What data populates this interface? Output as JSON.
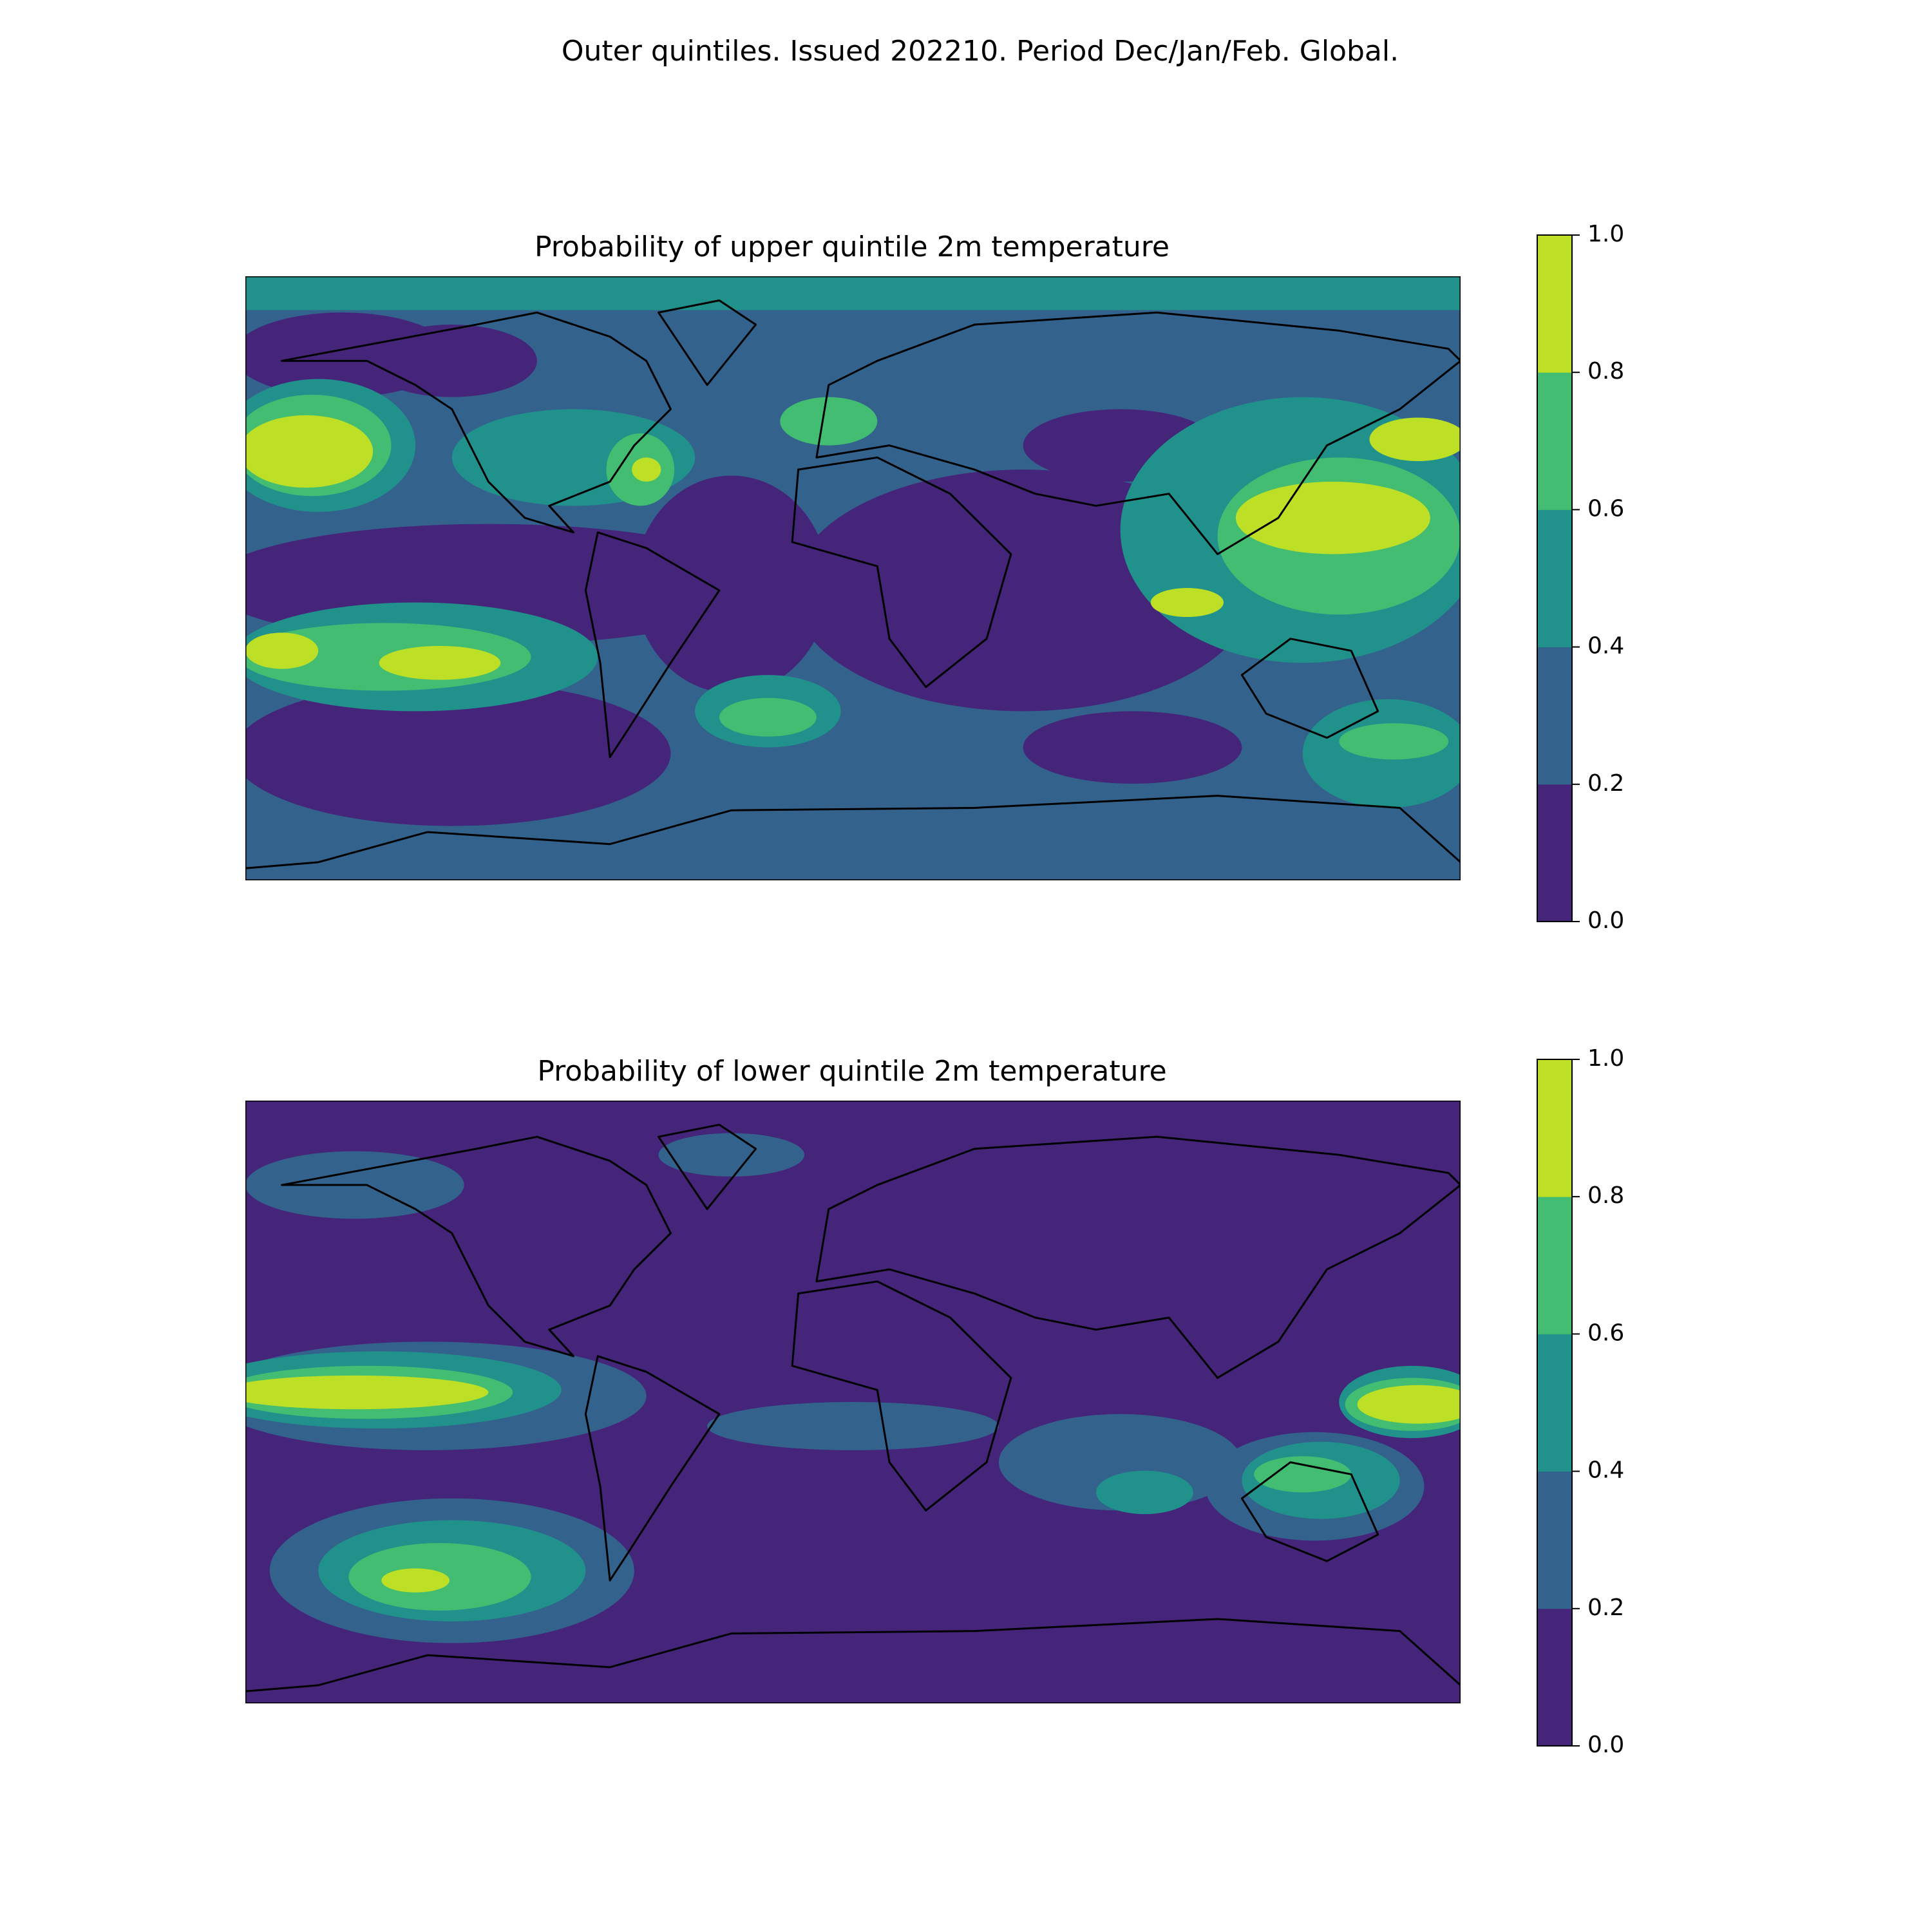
{
  "title": "Outer quintiles. Issued 202210. Period Dec/Jan/Feb. Global.",
  "chart_data": [
    {
      "type": "contour",
      "title": "Probability of upper quintile 2m temperature",
      "clim": [
        0,
        1
      ],
      "cticks": [
        {
          "value": 0,
          "label": "0.0"
        },
        0.2,
        0.4,
        0.6,
        0.8,
        {
          "value": 1,
          "label": "1.0"
        }
      ],
      "colors": [
        "#45257a",
        "#33628d",
        "#21918c",
        "#42bd71",
        "#bddf26"
      ]
    },
    {
      "type": "contour",
      "title": "Probability of lower quintile 2m temperature",
      "clim": [
        0,
        1
      ],
      "cticks": [
        {
          "value": 0,
          "label": "0.0"
        },
        0.2,
        0.4,
        0.6,
        0.8,
        {
          "value": 1,
          "label": "1.0"
        }
      ],
      "colors": [
        "#45257a",
        "#33628d",
        "#21918c",
        "#42bd71",
        "#bddf26"
      ]
    }
  ]
}
